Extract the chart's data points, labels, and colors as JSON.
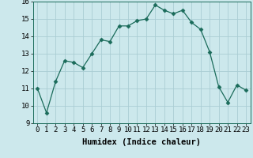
{
  "xlabel": "Humidex (Indice chaleur)",
  "ylabel": "",
  "x": [
    0,
    1,
    2,
    3,
    4,
    5,
    6,
    7,
    8,
    9,
    10,
    11,
    12,
    13,
    14,
    15,
    16,
    17,
    18,
    19,
    20,
    21,
    22,
    23
  ],
  "y": [
    11.0,
    9.6,
    11.4,
    12.6,
    12.5,
    12.2,
    13.0,
    13.8,
    13.7,
    14.6,
    14.6,
    14.9,
    15.0,
    15.8,
    15.5,
    15.3,
    15.5,
    14.8,
    14.4,
    13.1,
    11.1,
    10.2,
    11.2,
    10.9
  ],
  "ylim": [
    9,
    16
  ],
  "xlim_min": -0.5,
  "xlim_max": 23.5,
  "yticks": [
    9,
    10,
    11,
    12,
    13,
    14,
    15,
    16
  ],
  "xticks": [
    0,
    1,
    2,
    3,
    4,
    5,
    6,
    7,
    8,
    9,
    10,
    11,
    12,
    13,
    14,
    15,
    16,
    17,
    18,
    19,
    20,
    21,
    22,
    23
  ],
  "line_color": "#1a6b5a",
  "marker": "D",
  "marker_size": 2.5,
  "bg_color": "#cce8ec",
  "grid_color": "#aacdd4",
  "label_fontsize": 7.5,
  "tick_fontsize": 6.5
}
